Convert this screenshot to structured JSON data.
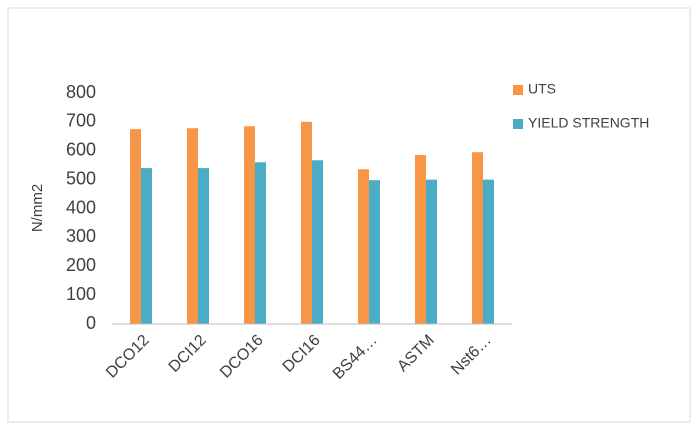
{
  "chart_data": {
    "type": "bar",
    "y_label": "N/mm2",
    "categories": [
      "DCO12",
      "DCI12",
      "DCO16",
      "DCI16",
      "BS44…",
      "ASTM",
      "Nst6…"
    ],
    "series": [
      {
        "name": "UTS",
        "color": "#f79646",
        "values": [
          675,
          678,
          685,
          700,
          536,
          585,
          595
        ]
      },
      {
        "name": "YIELD STRENGTH",
        "color": "#4bacc6",
        "values": [
          540,
          540,
          560,
          567,
          498,
          500,
          500
        ]
      }
    ],
    "ylim": [
      0,
      800
    ],
    "yticks": [
      0,
      100,
      200,
      300,
      400,
      500,
      600,
      700,
      800
    ],
    "grid": false,
    "legend": "right"
  }
}
